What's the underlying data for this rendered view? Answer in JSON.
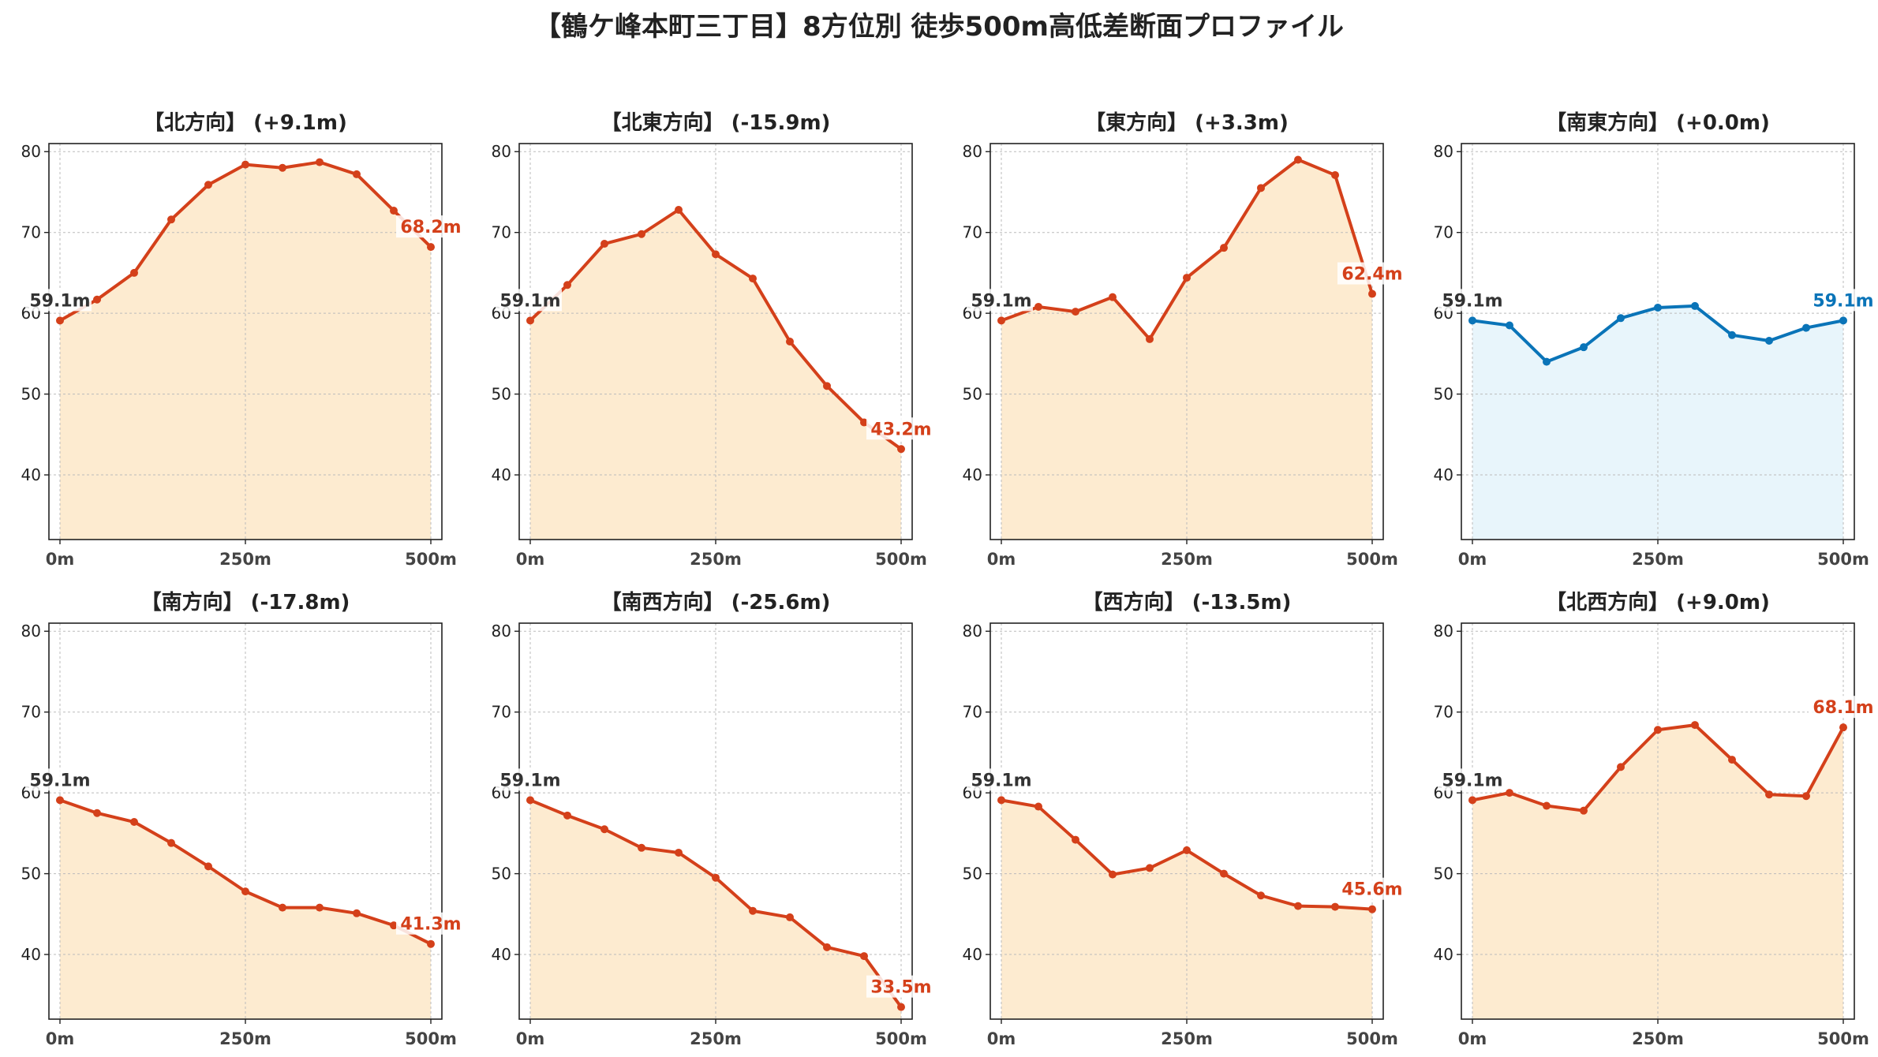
{
  "title": "【鶴ケ峰本町三丁目】8方位別 徒歩500m高低差断面プロファイル",
  "colors": {
    "up_down_line": "#d4401a",
    "up_down_fill": "#fdebd0",
    "flat_line": "#0a74b8",
    "flat_fill": "#e8f5fb",
    "start_label": "#333333",
    "grid": "#bbbbbb"
  },
  "chart_data": [
    {
      "type": "line",
      "title": "【北方向】 (+9.1m)",
      "x": [
        0,
        50,
        100,
        150,
        200,
        250,
        300,
        350,
        400,
        450,
        500
      ],
      "series": [
        {
          "values": [
            59.1,
            61.7,
            65.0,
            71.6,
            75.9,
            78.4,
            78.0,
            78.7,
            77.2,
            72.7,
            68.2
          ]
        }
      ],
      "start_label": "59.1m",
      "end_label": "68.2m",
      "style": "orange",
      "xticks": [
        "0m",
        "250m",
        "500m"
      ],
      "xlim": [
        0,
        500
      ],
      "ylim": [
        32,
        81
      ],
      "yticks": [
        40,
        50,
        60,
        70,
        80
      ],
      "grid": true
    },
    {
      "type": "line",
      "title": "【北東方向】 (-15.9m)",
      "x": [
        0,
        50,
        100,
        150,
        200,
        250,
        300,
        350,
        400,
        450,
        500
      ],
      "series": [
        {
          "values": [
            59.1,
            63.5,
            68.6,
            69.8,
            72.8,
            67.3,
            64.3,
            56.5,
            51.0,
            46.5,
            43.2
          ]
        }
      ],
      "start_label": "59.1m",
      "end_label": "43.2m",
      "style": "orange",
      "xticks": [
        "0m",
        "250m",
        "500m"
      ],
      "xlim": [
        0,
        500
      ],
      "ylim": [
        32,
        81
      ],
      "yticks": [
        40,
        50,
        60,
        70,
        80
      ],
      "grid": true
    },
    {
      "type": "line",
      "title": "【東方向】 (+3.3m)",
      "x": [
        0,
        50,
        100,
        150,
        200,
        250,
        300,
        350,
        400,
        450,
        500
      ],
      "series": [
        {
          "values": [
            59.1,
            60.8,
            60.2,
            62.0,
            56.8,
            64.4,
            68.1,
            75.5,
            79.0,
            77.1,
            62.4
          ]
        }
      ],
      "start_label": "59.1m",
      "end_label": "62.4m",
      "style": "orange",
      "xticks": [
        "0m",
        "250m",
        "500m"
      ],
      "xlim": [
        0,
        500
      ],
      "ylim": [
        32,
        81
      ],
      "yticks": [
        40,
        50,
        60,
        70,
        80
      ],
      "grid": true
    },
    {
      "type": "line",
      "title": "【南東方向】 (+0.0m)",
      "x": [
        0,
        50,
        100,
        150,
        200,
        250,
        300,
        350,
        400,
        450,
        500
      ],
      "series": [
        {
          "values": [
            59.1,
            58.5,
            54.0,
            55.8,
            59.4,
            60.7,
            60.9,
            57.3,
            56.6,
            58.2,
            59.1
          ]
        }
      ],
      "start_label": "59.1m",
      "end_label": "59.1m",
      "style": "blue",
      "xticks": [
        "0m",
        "250m",
        "500m"
      ],
      "xlim": [
        0,
        500
      ],
      "ylim": [
        32,
        81
      ],
      "yticks": [
        40,
        50,
        60,
        70,
        80
      ],
      "grid": true
    },
    {
      "type": "line",
      "title": "【南方向】 (-17.8m)",
      "x": [
        0,
        50,
        100,
        150,
        200,
        250,
        300,
        350,
        400,
        450,
        500
      ],
      "series": [
        {
          "values": [
            59.1,
            57.5,
            56.4,
            53.8,
            50.9,
            47.8,
            45.8,
            45.8,
            45.1,
            43.6,
            41.3
          ]
        }
      ],
      "start_label": "59.1m",
      "end_label": "41.3m",
      "style": "orange",
      "xticks": [
        "0m",
        "250m",
        "500m"
      ],
      "xlim": [
        0,
        500
      ],
      "ylim": [
        32,
        81
      ],
      "yticks": [
        40,
        50,
        60,
        70,
        80
      ],
      "grid": true
    },
    {
      "type": "line",
      "title": "【南西方向】 (-25.6m)",
      "x": [
        0,
        50,
        100,
        150,
        200,
        250,
        300,
        350,
        400,
        450,
        500
      ],
      "series": [
        {
          "values": [
            59.1,
            57.2,
            55.5,
            53.2,
            52.6,
            49.5,
            45.4,
            44.6,
            40.9,
            39.8,
            33.5
          ]
        }
      ],
      "start_label": "59.1m",
      "end_label": "33.5m",
      "style": "orange",
      "xticks": [
        "0m",
        "250m",
        "500m"
      ],
      "xlim": [
        0,
        500
      ],
      "ylim": [
        32,
        81
      ],
      "yticks": [
        40,
        50,
        60,
        70,
        80
      ],
      "grid": true
    },
    {
      "type": "line",
      "title": "【西方向】 (-13.5m)",
      "x": [
        0,
        50,
        100,
        150,
        200,
        250,
        300,
        350,
        400,
        450,
        500
      ],
      "series": [
        {
          "values": [
            59.1,
            58.3,
            54.2,
            49.9,
            50.7,
            52.9,
            50.0,
            47.3,
            46.0,
            45.9,
            45.6
          ]
        }
      ],
      "start_label": "59.1m",
      "end_label": "45.6m",
      "style": "orange",
      "xticks": [
        "0m",
        "250m",
        "500m"
      ],
      "xlim": [
        0,
        500
      ],
      "ylim": [
        32,
        81
      ],
      "yticks": [
        40,
        50,
        60,
        70,
        80
      ],
      "grid": true
    },
    {
      "type": "line",
      "title": "【北西方向】 (+9.0m)",
      "x": [
        0,
        50,
        100,
        150,
        200,
        250,
        300,
        350,
        400,
        450,
        500
      ],
      "series": [
        {
          "values": [
            59.1,
            60.0,
            58.4,
            57.8,
            63.2,
            67.8,
            68.4,
            64.1,
            59.8,
            59.6,
            68.1
          ]
        }
      ],
      "start_label": "59.1m",
      "end_label": "68.1m",
      "style": "orange",
      "xticks": [
        "0m",
        "250m",
        "500m"
      ],
      "xlim": [
        0,
        500
      ],
      "ylim": [
        32,
        81
      ],
      "yticks": [
        40,
        50,
        60,
        70,
        80
      ],
      "grid": true
    }
  ]
}
